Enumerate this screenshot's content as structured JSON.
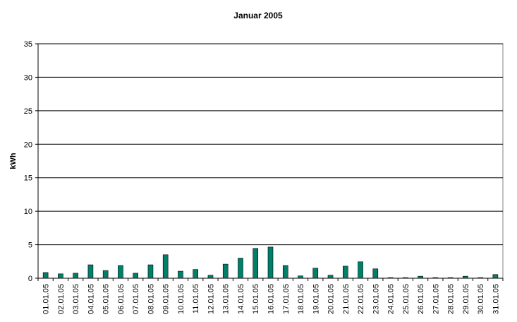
{
  "chart_data": {
    "type": "bar",
    "title": "Januar 2005",
    "y_label": "kWh",
    "categories": [
      "01.01.05",
      "02.01.05",
      "03.01.05",
      "04.01.05",
      "05.01.05",
      "06.01.05",
      "07.01.05",
      "08.01.05",
      "09.01.05",
      "10.01.05",
      "11.01.05",
      "12.01.05",
      "13.01.05",
      "14.01.05",
      "15.01.05",
      "16.01.05",
      "17.01.05",
      "18.01.05",
      "19.01.05",
      "20.01.05",
      "21.01.05",
      "22.01.05",
      "23.01.05",
      "24.01.05",
      "25.01.05",
      "26.01.05",
      "27.01.05",
      "28.01.05",
      "29.01.05",
      "30.01.05",
      "31.01.05"
    ],
    "values": [
      0.85,
      0.65,
      0.75,
      2.0,
      1.15,
      1.9,
      0.75,
      2.0,
      3.5,
      1.05,
      1.3,
      0.45,
      2.1,
      3.0,
      4.45,
      4.65,
      1.9,
      0.35,
      1.5,
      0.45,
      1.8,
      2.45,
      1.4,
      0.1,
      0.1,
      0.3,
      0.1,
      0.1,
      0.3,
      0.1,
      0.55
    ],
    "color": "#00806b",
    "ylim": [
      0,
      35
    ],
    "yticks": [
      0,
      5,
      10,
      15,
      20,
      25,
      30,
      35
    ],
    "grid": true
  }
}
